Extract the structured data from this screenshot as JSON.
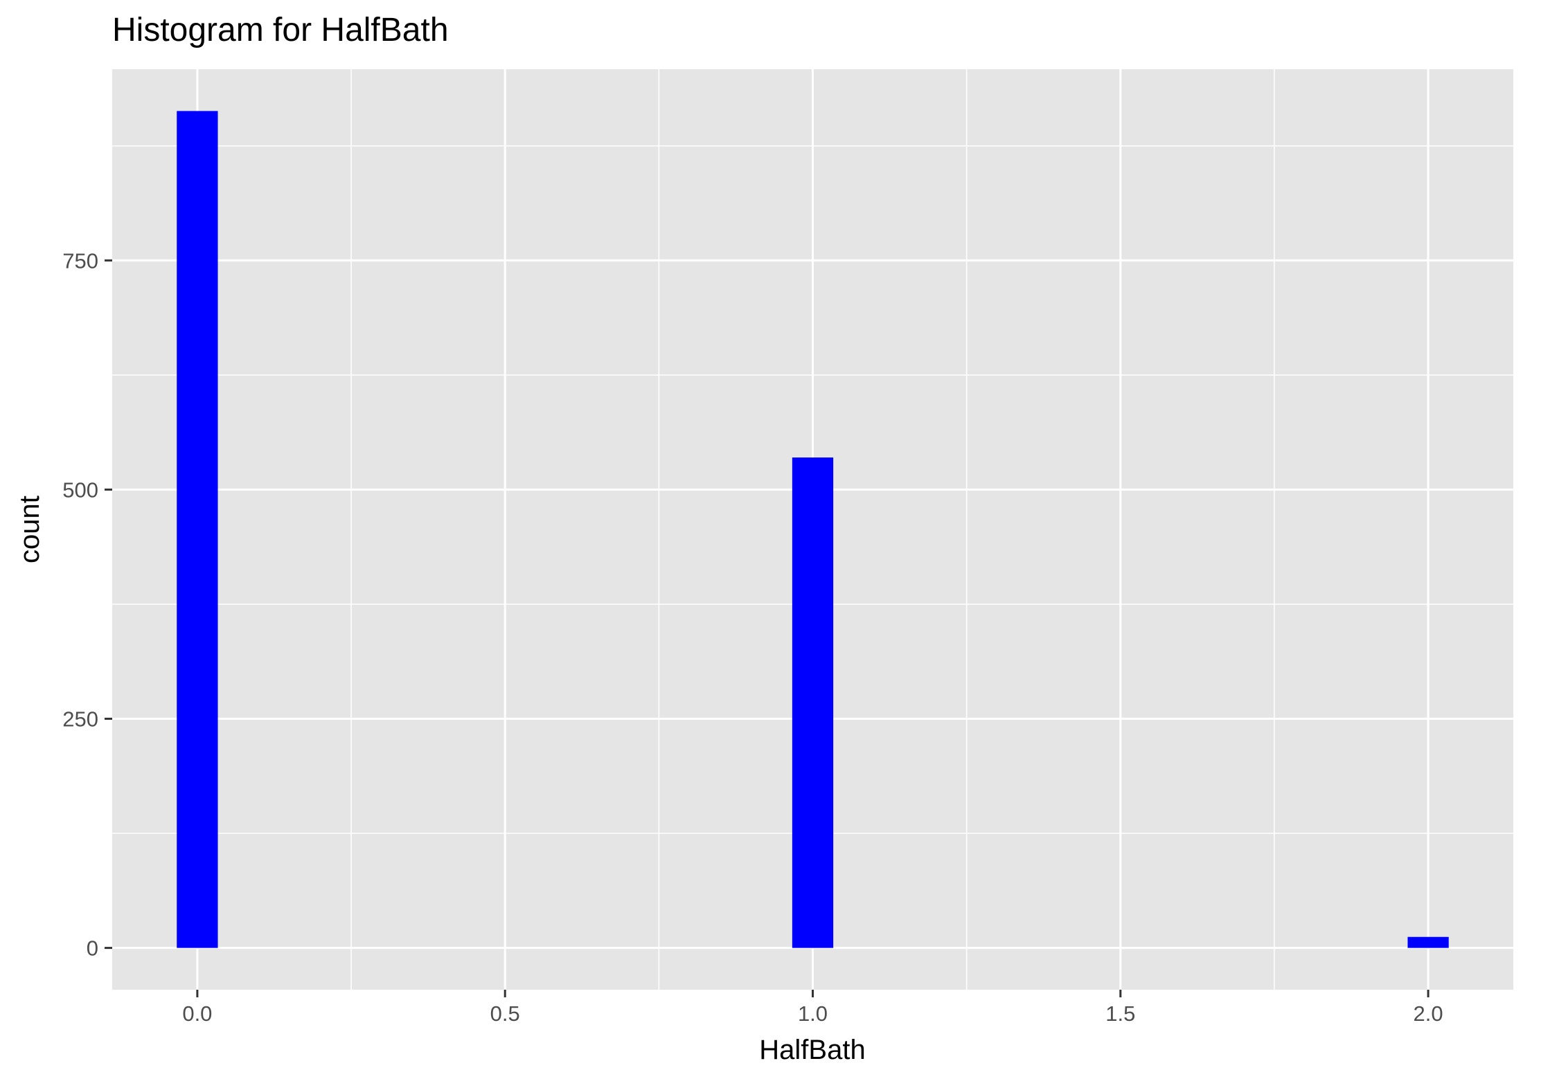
{
  "chart_data": {
    "type": "bar",
    "title": "Histogram for HalfBath",
    "xlabel": "HalfBath",
    "ylabel": "count",
    "x": [
      0,
      1,
      2
    ],
    "values": [
      913,
      535,
      12
    ],
    "bin_width": 0.0667,
    "xlim": [
      -0.1383,
      2.1383
    ],
    "ylim": [
      -45.6,
      958.6
    ],
    "xticks": [
      0.0,
      0.5,
      1.0,
      1.5,
      2.0
    ],
    "xtick_labels": [
      "0.0",
      "0.5",
      "1.0",
      "1.5",
      "2.0"
    ],
    "yticks": [
      0,
      250,
      500,
      750
    ],
    "ytick_labels": [
      "0",
      "250",
      "500",
      "750"
    ],
    "grid": true,
    "legend": "none",
    "colors": {
      "bar_fill": "#0000FF",
      "panel_background": "#E5E5E5",
      "grid_line": "#FFFFFF",
      "axis_text": "#4D4D4D",
      "title_text": "#000000"
    }
  }
}
